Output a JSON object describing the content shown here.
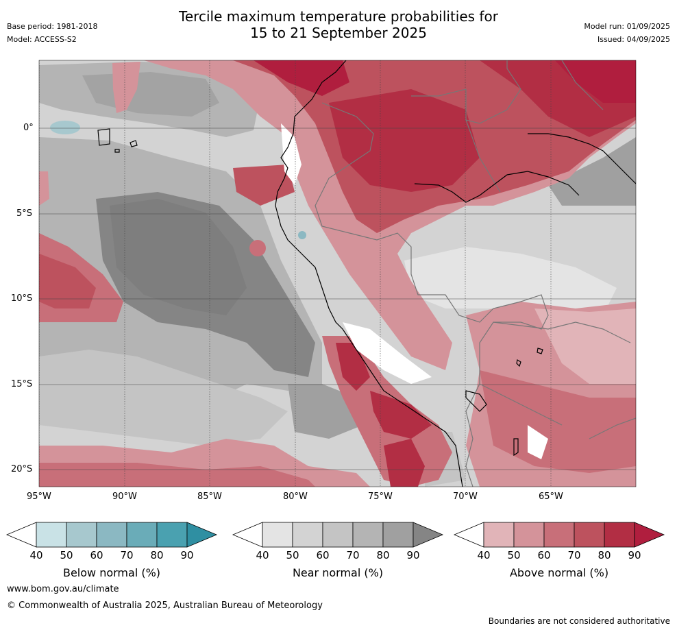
{
  "header": {
    "base_period": "Base period: 1981-2018",
    "model": "Model: ACCESS-S2",
    "title_line1": "Tercile maximum temperature probabilities for",
    "title_line2": "15 to 21 September 2025",
    "model_run": "Model run: 01/09/2025",
    "issued": "Issued: 04/09/2025"
  },
  "map": {
    "lat_labels": [
      "0°",
      "5°S",
      "10°S",
      "15°S",
      "20°S"
    ],
    "lon_labels": [
      "95°W",
      "90°W",
      "85°W",
      "80°W",
      "75°W",
      "70°W",
      "65°W"
    ],
    "colors": {
      "below": [
        "#ffffff",
        "#c9e2e6",
        "#a7c8ce",
        "#8bb8c2",
        "#6aacb8",
        "#4aa1b0",
        "#2f8fa2"
      ],
      "near": [
        "#ffffff",
        "#e4e4e4",
        "#d3d3d3",
        "#c4c4c4",
        "#b4b4b4",
        "#a0a0a0",
        "#858585"
      ],
      "above": [
        "#ffffff",
        "#e1b4b8",
        "#d4939a",
        "#c86f79",
        "#bd525e",
        "#b22e44",
        "#b01e3e"
      ]
    }
  },
  "colorbars": [
    {
      "label": "Below normal (%)",
      "ticks": [
        "40",
        "50",
        "60",
        "70",
        "80",
        "90"
      ]
    },
    {
      "label": "Near normal (%)",
      "ticks": [
        "40",
        "50",
        "60",
        "70",
        "80",
        "90"
      ]
    },
    {
      "label": "Above normal (%)",
      "ticks": [
        "40",
        "50",
        "60",
        "70",
        "80",
        "90"
      ]
    }
  ],
  "footer": {
    "website": "www.bom.gov.au/climate",
    "copyright": "© Commonwealth of Australia 2025, Australian Bureau of Meteorology",
    "disclaimer": "Boundaries are not considered authoritative"
  }
}
